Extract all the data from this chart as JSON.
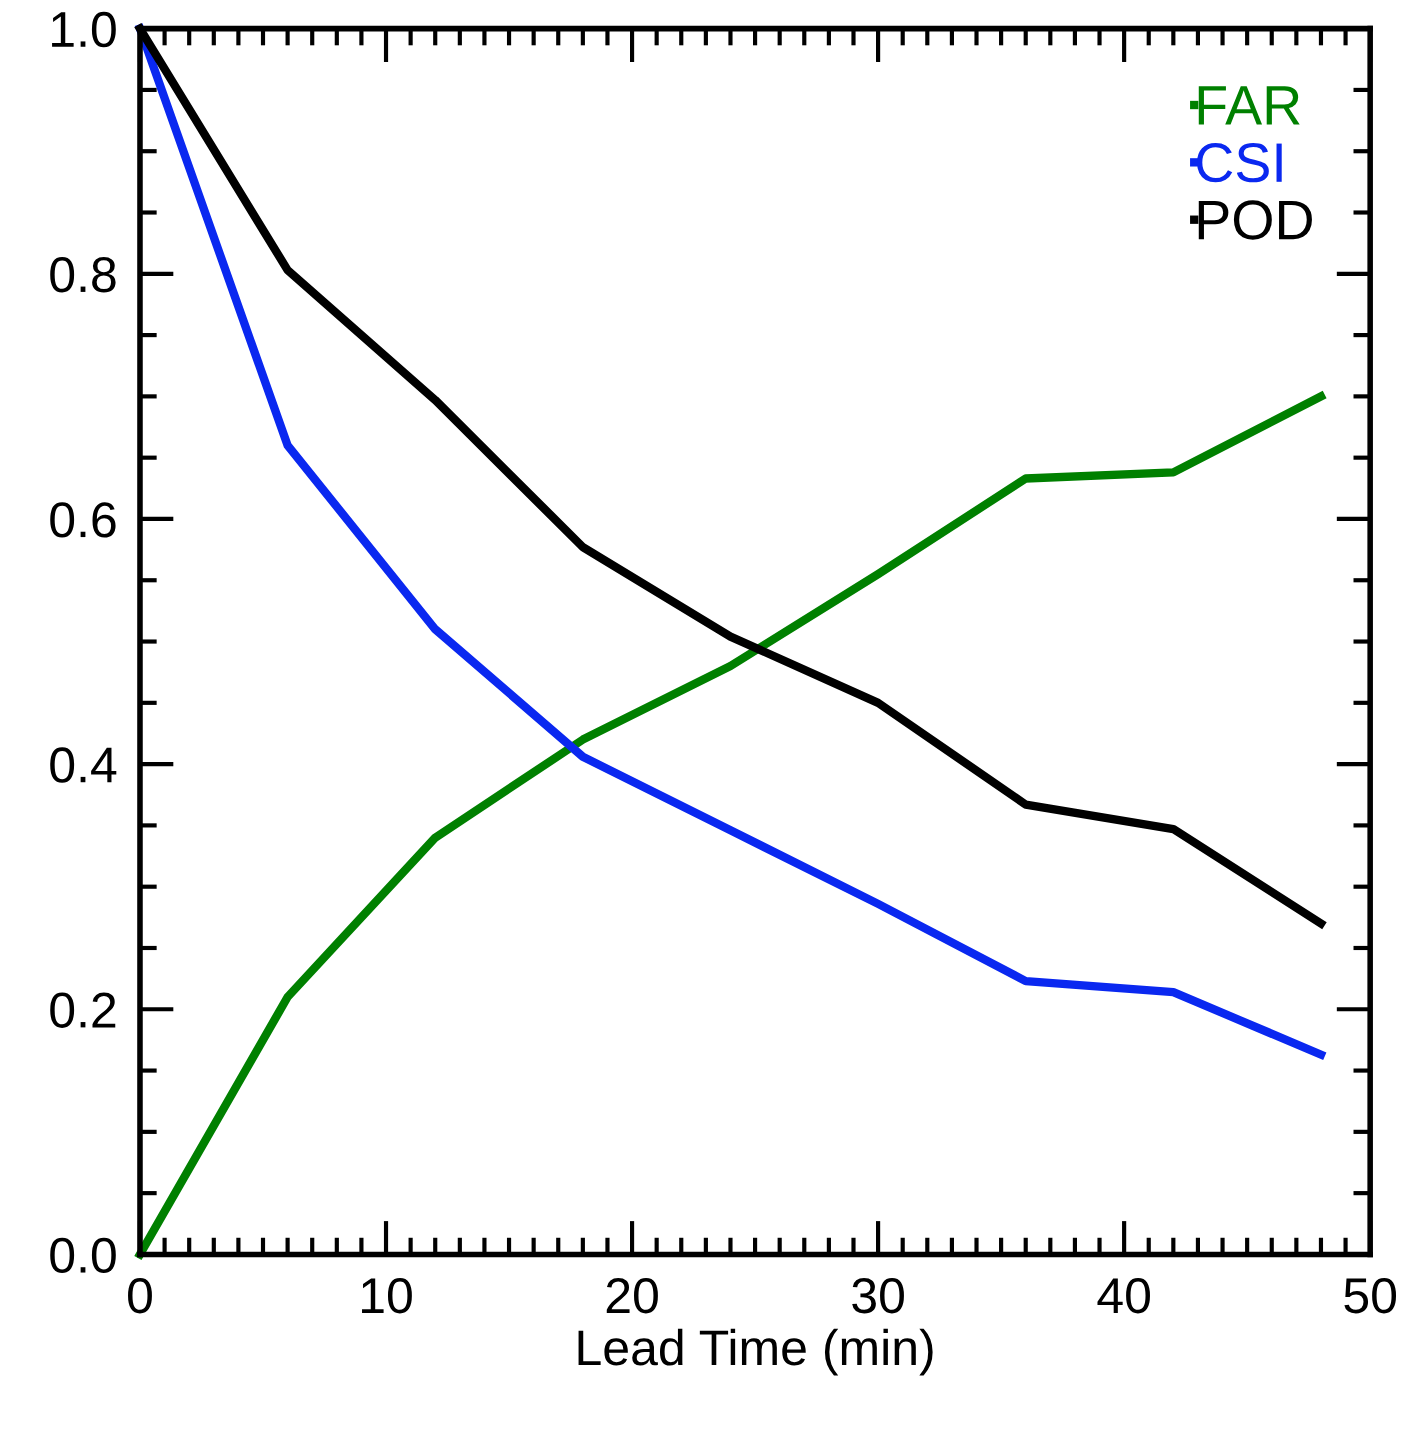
{
  "chart_data": {
    "type": "line",
    "xlabel": "Lead Time (min)",
    "x": [
      0,
      6,
      12,
      18,
      24,
      30,
      36,
      42,
      48
    ],
    "series": [
      {
        "name": "FAR",
        "color": "#008000",
        "values": [
          0.0,
          0.21,
          0.34,
          0.42,
          0.48,
          0.555,
          0.633,
          0.638,
          0.7
        ]
      },
      {
        "name": "CSI",
        "color": "#0a28f0",
        "values": [
          1.0,
          0.66,
          0.51,
          0.406,
          0.346,
          0.286,
          0.223,
          0.214,
          0.163
        ]
      },
      {
        "name": "POD",
        "color": "#000000",
        "values": [
          1.0,
          0.803,
          0.697,
          0.577,
          0.504,
          0.45,
          0.367,
          0.347,
          0.27
        ]
      }
    ],
    "xlim": [
      0,
      50
    ],
    "xticks": [
      0,
      10,
      20,
      30,
      40,
      50
    ],
    "ylim": [
      0,
      1
    ],
    "yticks": [
      {
        "value": 0,
        "label": "0.0"
      },
      0.2,
      0.4,
      0.6,
      0.8,
      {
        "value": 1,
        "label": "1.0"
      }
    ],
    "legend": "top right",
    "grid": false,
    "line_style": "solid",
    "marker": "none"
  }
}
